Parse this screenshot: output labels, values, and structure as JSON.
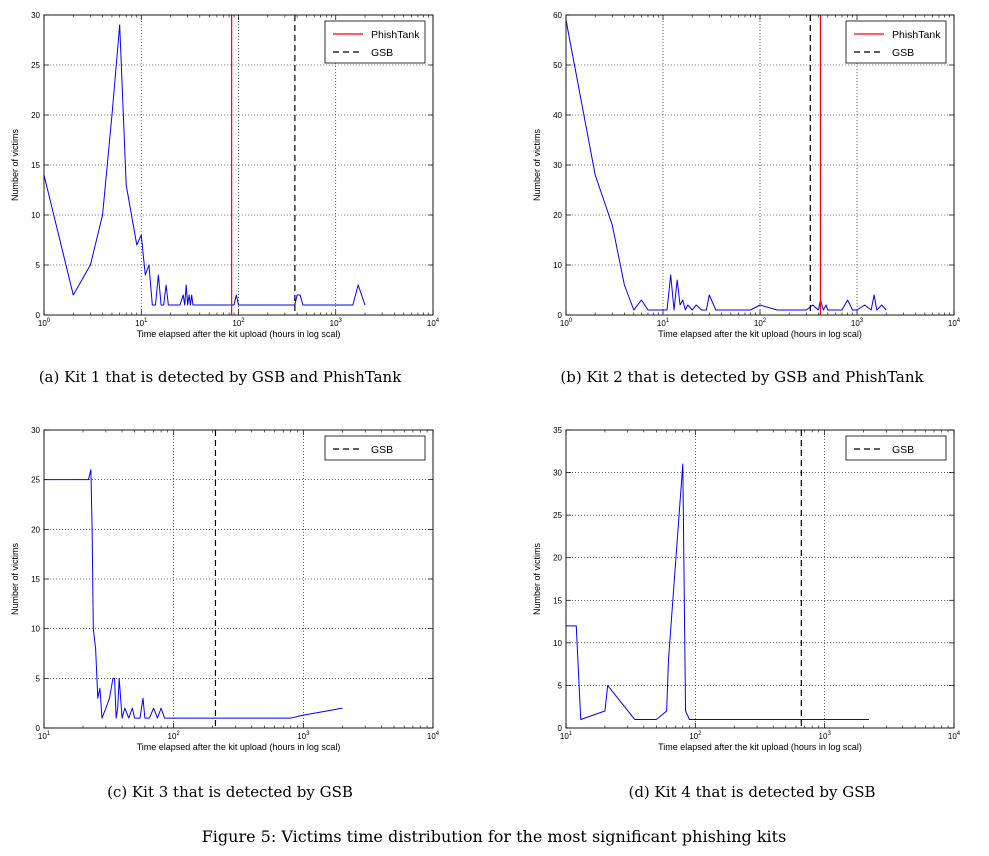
{
  "figure_caption": "Figure 5: Victims time distribution for the most significant phishing kits",
  "chart_data": [
    {
      "type": "line",
      "caption": "(a) Kit 1 that is detected by GSB and PhishTank",
      "xlabel": "Time elapsed after the kit upload (hours in log scal)",
      "ylabel": "Number of victims",
      "xscale": "log",
      "xlim": [
        1,
        10000
      ],
      "ylim": [
        0,
        30
      ],
      "yticks": [
        0,
        5,
        10,
        15,
        20,
        25,
        30
      ],
      "xticks": [
        1,
        10,
        100,
        1000,
        10000
      ],
      "grid": true,
      "legend_position": "top-right",
      "series": [
        {
          "name": "",
          "color": "#0000ff",
          "x": [
            1,
            2,
            3,
            4,
            5,
            6,
            7,
            9,
            10,
            11,
            12,
            13,
            14,
            15,
            16,
            17,
            18,
            19,
            20,
            22,
            25,
            27,
            28,
            29,
            30,
            31,
            32,
            33,
            34,
            36,
            40,
            45,
            50,
            60,
            70,
            80,
            90,
            95,
            100,
            150,
            200,
            300,
            380,
            400,
            430,
            460,
            500,
            700,
            1000,
            1500,
            1700,
            2000
          ],
          "y": [
            14,
            2,
            5,
            10,
            20,
            29,
            13,
            7,
            8,
            4,
            5,
            1,
            1,
            4,
            1,
            1,
            3,
            1,
            1,
            1,
            1,
            2,
            1,
            3,
            1,
            2,
            1,
            2,
            1,
            1,
            1,
            1,
            1,
            1,
            1,
            1,
            1,
            2,
            1,
            1,
            1,
            1,
            1,
            2,
            2,
            1,
            1,
            1,
            1,
            1,
            3,
            1
          ]
        }
      ],
      "vlines": [
        {
          "name": "PhishTank",
          "x": 85,
          "color": "#ff0000",
          "style": "solid"
        },
        {
          "name": "GSB",
          "x": 380,
          "color": "#000000",
          "style": "dashed"
        }
      ]
    },
    {
      "type": "line",
      "caption": "(b) Kit 2 that is detected by GSB and PhishTank",
      "xlabel": "Time elapsed after the kit upload (hours in log scal)",
      "ylabel": "Number of victims",
      "xscale": "log",
      "xlim": [
        1,
        10000
      ],
      "ylim": [
        0,
        60
      ],
      "yticks": [
        0,
        10,
        20,
        30,
        40,
        50,
        60
      ],
      "xticks": [
        1,
        10,
        100,
        1000,
        10000
      ],
      "grid": true,
      "legend_position": "top-right",
      "series": [
        {
          "name": "",
          "color": "#0000ff",
          "x": [
            1,
            2,
            3,
            4,
            5,
            6,
            7,
            8,
            9,
            10,
            11,
            12,
            13,
            14,
            15,
            16,
            17,
            18,
            20,
            22,
            25,
            28,
            30,
            35,
            40,
            50,
            60,
            80,
            100,
            150,
            200,
            300,
            350,
            400,
            420,
            450,
            480,
            500,
            600,
            700,
            800,
            900,
            1000,
            1200,
            1400,
            1500,
            1600,
            1800,
            2000
          ],
          "y": [
            59,
            28,
            18,
            6,
            1,
            3,
            1,
            1,
            1,
            1,
            1,
            8,
            1,
            7,
            2,
            3,
            1,
            2,
            1,
            2,
            1,
            1,
            4,
            1,
            1,
            1,
            1,
            1,
            2,
            1,
            1,
            1,
            2,
            1,
            3,
            1,
            2,
            1,
            1,
            1,
            3,
            1,
            1,
            2,
            1,
            4,
            1,
            2,
            1
          ]
        }
      ],
      "vlines": [
        {
          "name": "PhishTank",
          "x": 420,
          "color": "#ff0000",
          "style": "solid"
        },
        {
          "name": "GSB",
          "x": 330,
          "color": "#000000",
          "style": "dashed"
        }
      ]
    },
    {
      "type": "line",
      "caption": "(c) Kit 3 that is detected by GSB",
      "xlabel": "Time elapsed after the kit upload (hours in log scal)",
      "ylabel": "Number of victims",
      "xscale": "log",
      "xlim": [
        10,
        10000
      ],
      "ylim": [
        0,
        30
      ],
      "yticks": [
        0,
        5,
        10,
        15,
        20,
        25,
        30
      ],
      "xticks": [
        10,
        100,
        1000,
        10000
      ],
      "grid": true,
      "legend_position": "top-right",
      "series": [
        {
          "name": "",
          "color": "#0000ff",
          "x": [
            10,
            22,
            23,
            23.5,
            24,
            25,
            26,
            27,
            28,
            30,
            32,
            34,
            35,
            36,
            37,
            38,
            40,
            42,
            45,
            48,
            50,
            55,
            58,
            60,
            65,
            70,
            75,
            80,
            85,
            90,
            100,
            150,
            200,
            300,
            400,
            600,
            800,
            1000,
            1500,
            2000
          ],
          "y": [
            25,
            25,
            26,
            20,
            10,
            8,
            3,
            4,
            1,
            2,
            3,
            5,
            5,
            1,
            2,
            5,
            1,
            2,
            1,
            2,
            1,
            1,
            3,
            1,
            1,
            2,
            1,
            2,
            1,
            1,
            1,
            1,
            1,
            1,
            1,
            1,
            1,
            1.3,
            1.7,
            2
          ]
        }
      ],
      "vlines": [
        {
          "name": "GSB",
          "x": 210,
          "color": "#000000",
          "style": "dashed"
        }
      ]
    },
    {
      "type": "line",
      "caption": "(d) Kit 4 that is detected by GSB",
      "xlabel": "Time elapsed after the kit upload (hours in log scal)",
      "ylabel": "Number of victims",
      "xscale": "log",
      "xlim": [
        10,
        10000
      ],
      "ylim": [
        0,
        35
      ],
      "yticks": [
        0,
        5,
        10,
        15,
        20,
        25,
        30,
        35
      ],
      "xticks": [
        10,
        100,
        1000,
        10000
      ],
      "grid": true,
      "legend_position": "top-right",
      "series": [
        {
          "name": "",
          "color": "#0000ff",
          "x": [
            10,
            12,
            13,
            20,
            21,
            34,
            50,
            60,
            62,
            80,
            84,
            90,
            100,
            200,
            500,
            1000,
            2200
          ],
          "y": [
            12,
            12,
            1,
            2,
            5,
            1,
            1,
            2,
            8,
            31,
            2,
            1,
            1,
            1,
            1,
            1,
            1
          ]
        }
      ],
      "vlines": [
        {
          "name": "GSB",
          "x": 660,
          "color": "#000000",
          "style": "dashed"
        }
      ]
    }
  ]
}
